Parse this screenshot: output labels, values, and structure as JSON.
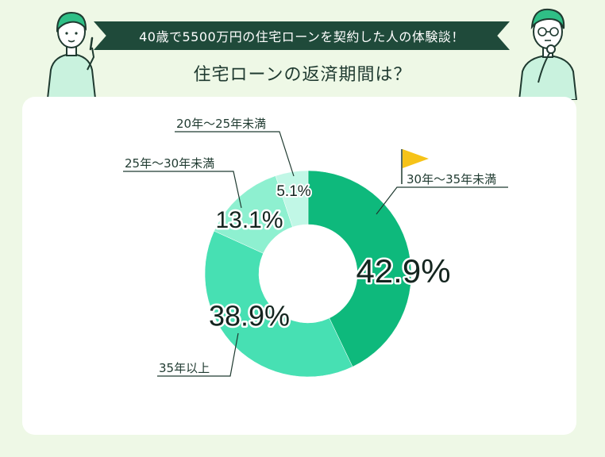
{
  "header": {
    "banner_text": "40歳で5500万円の住宅ローンを契約した人の体験談！",
    "subtitle": "住宅ローンの返済期間は？"
  },
  "colors": {
    "background": "#eef8e6",
    "banner": "#1f4a3a",
    "flag": "#f6c318"
  },
  "icons": [
    "flag-icon"
  ],
  "chart_data": {
    "type": "pie",
    "donut": true,
    "categories": [
      "30年〜35年未満",
      "35年以上",
      "25年〜30年未満",
      "20年〜25年未満"
    ],
    "values": [
      42.9,
      38.9,
      13.1,
      5.1
    ],
    "value_labels": [
      "42.9%",
      "38.9%",
      "13.1%",
      "5.1%"
    ],
    "colors": [
      "#0eb97c",
      "#47e0b3",
      "#8ef0d0",
      "#c1f7e6"
    ],
    "title": "住宅ローンの返済期間は？",
    "highlight": "30年〜35年未満",
    "legend": "none"
  }
}
